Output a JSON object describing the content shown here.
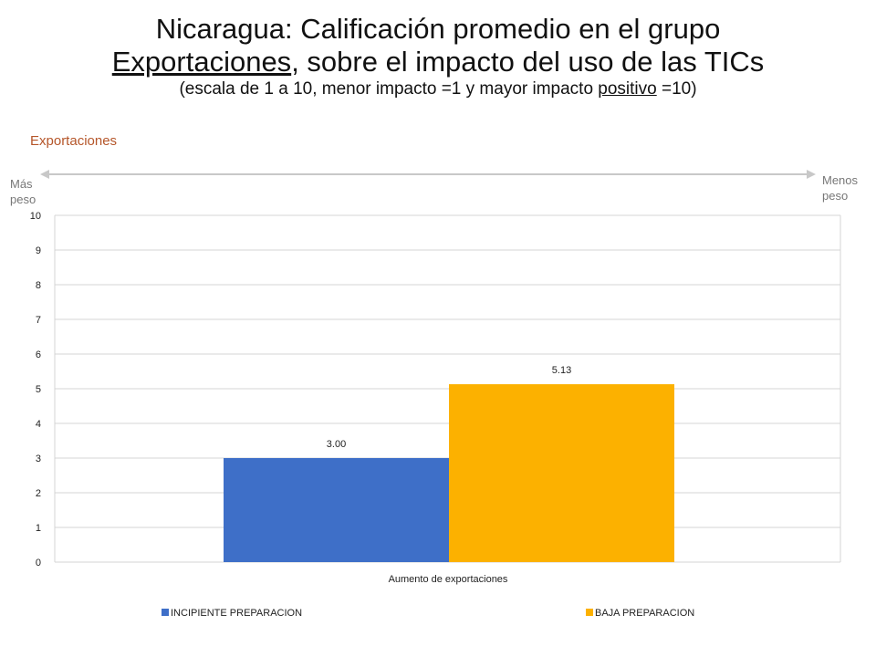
{
  "title": {
    "line1": "Nicaragua: Calificación promedio en el grupo",
    "line2_underlined": "Exportaciones",
    "line2_rest": ", sobre el impacto del uso de las TICs",
    "line3_pre": "(escala de 1 a 10, menor impacto =1 y mayor impacto ",
    "line3_underlined": "positivo",
    "line3_post": " =10)"
  },
  "section_label": "Exportaciones",
  "arrow": {
    "left_label": "Más peso",
    "right_label": "Menos peso"
  },
  "colors": {
    "series1": "#3e6fc8",
    "series2": "#fcb100",
    "grid": "#d4d4d4",
    "section": "#b5562a"
  },
  "chart_data": {
    "type": "bar",
    "categories": [
      "Aumento de exportaciones"
    ],
    "series": [
      {
        "name": "INCIPIENTE PREPARACION",
        "values": [
          3.0
        ],
        "label": "3.00"
      },
      {
        "name": "BAJA PREPARACION",
        "values": [
          5.13
        ],
        "label": "5.13"
      }
    ],
    "xlabel": "Aumento de exportaciones",
    "ylabel": "",
    "ylim": [
      0,
      10
    ],
    "yticks": [
      "0",
      "1",
      "2",
      "3",
      "4",
      "5",
      "6",
      "7",
      "8",
      "9",
      "10"
    ],
    "grid": true,
    "legend": "bottom"
  }
}
